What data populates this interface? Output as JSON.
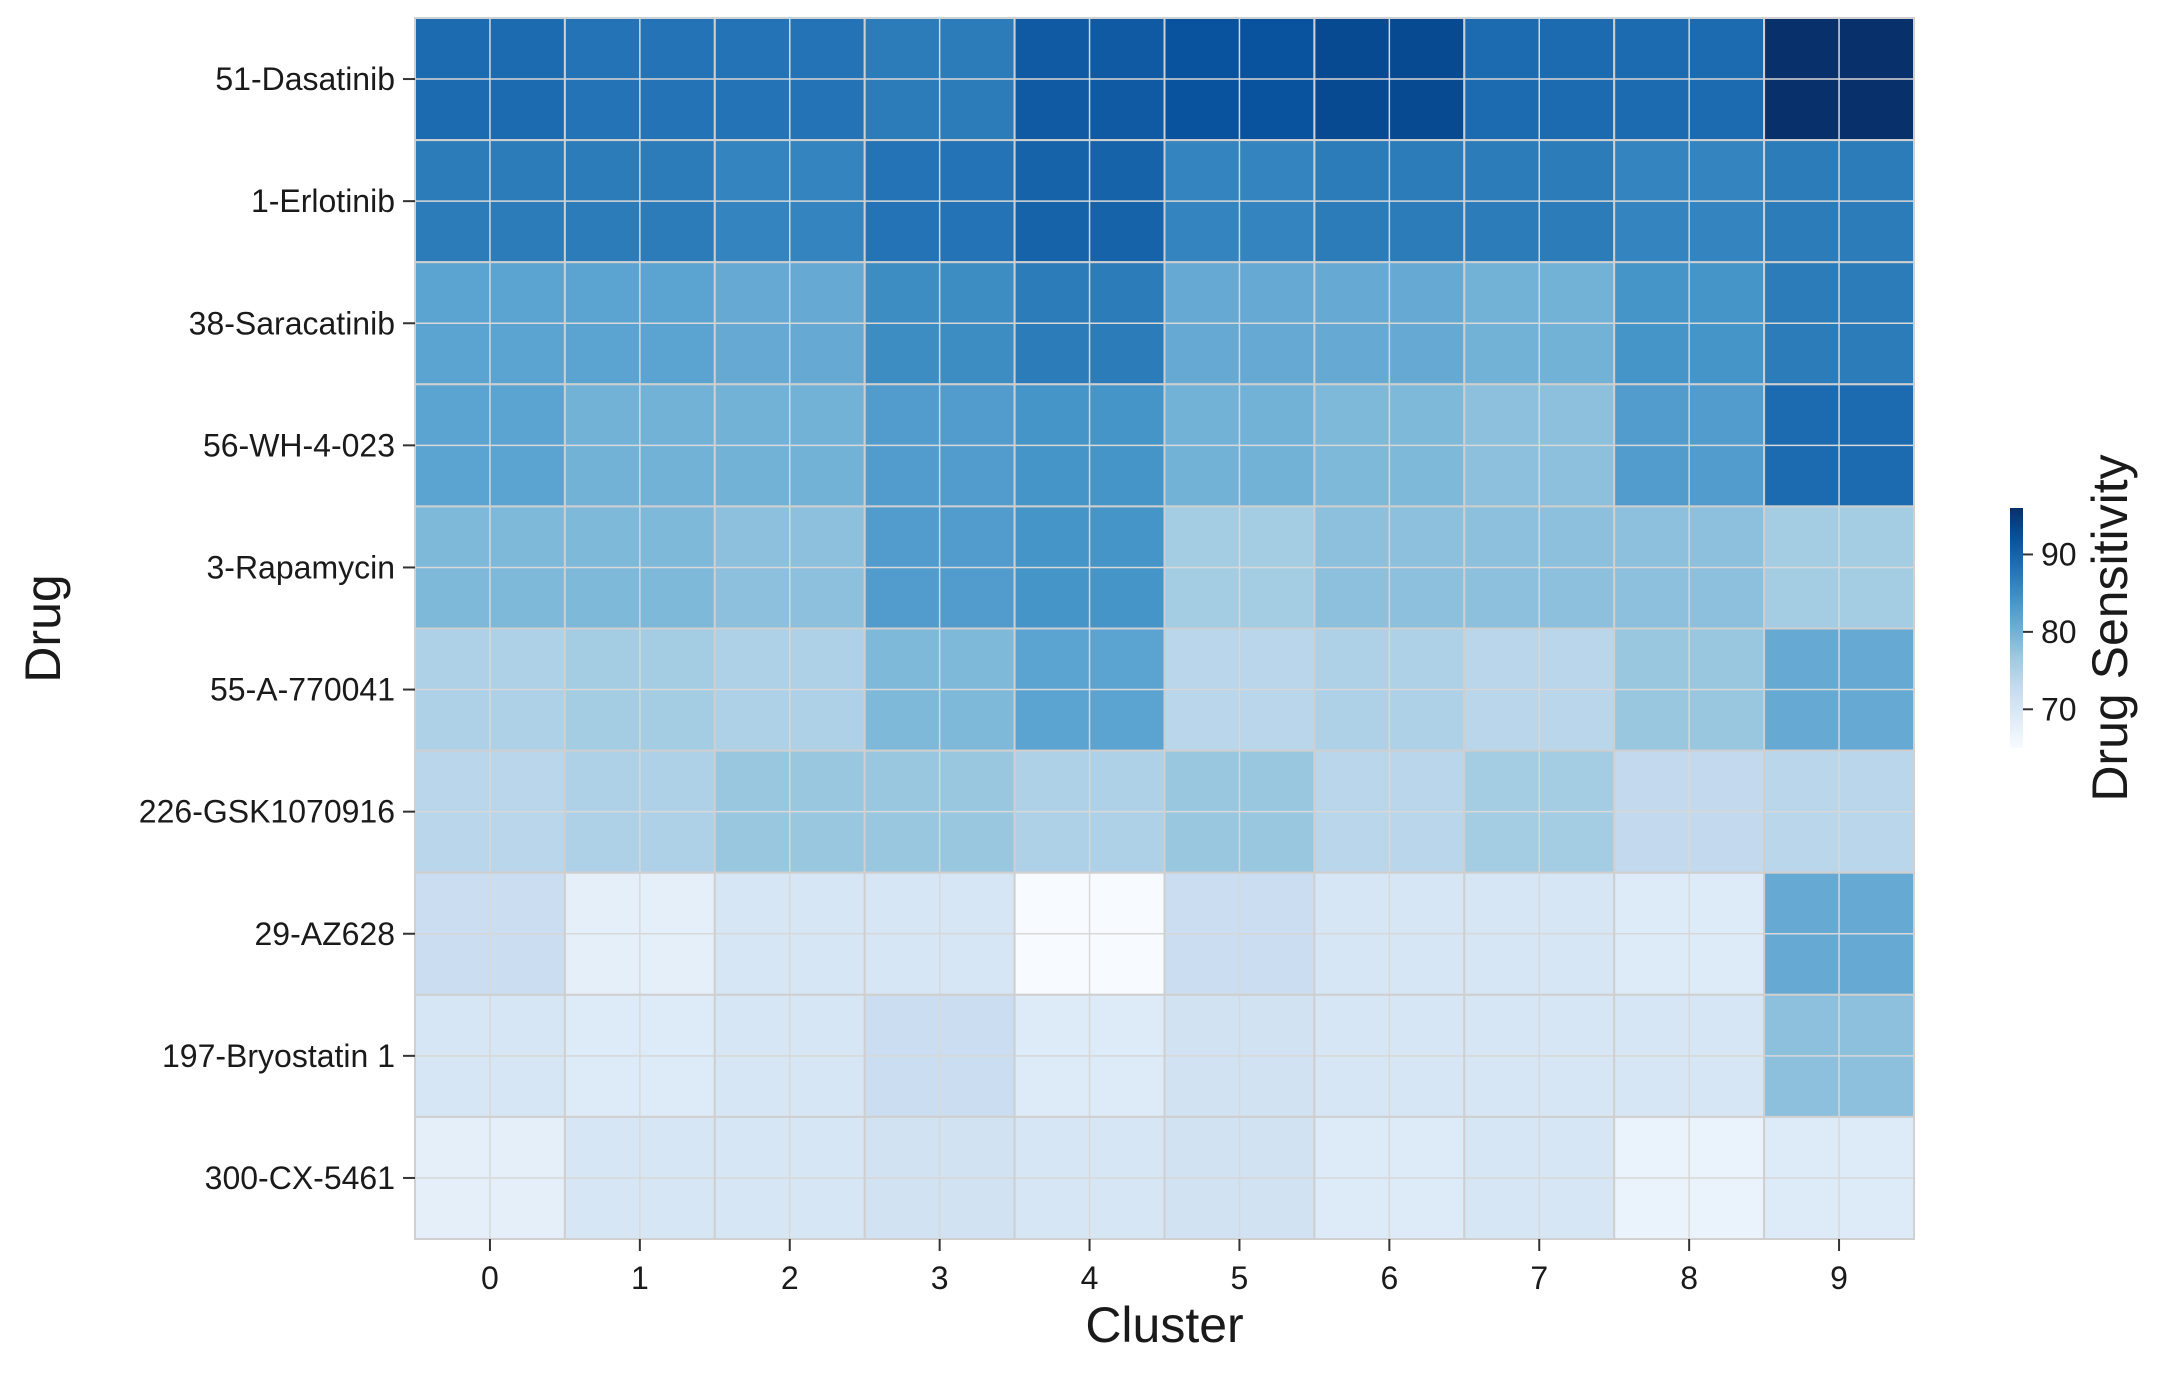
{
  "chart_data": {
    "type": "heatmap",
    "xlabel": "Cluster",
    "ylabel": "Drug",
    "colorbar_label": "Drug Sensitivity",
    "colorbar_ticks": [
      70,
      80,
      90
    ],
    "vmin": 65,
    "vmax": 96,
    "colormap": "Blues",
    "categories_x": [
      "0",
      "1",
      "2",
      "3",
      "4",
      "5",
      "6",
      "7",
      "8",
      "9"
    ],
    "categories_y": [
      "51-Dasatinib",
      "1-Erlotinib",
      "38-Saracatinib",
      "56-WH-4-023",
      "3-Rapamycin",
      "55-A-770041",
      "226-GSK1070916",
      "29-AZ628",
      "197-Bryostatin 1",
      "300-CX-5461"
    ],
    "values": [
      [
        89,
        88,
        88,
        87,
        91,
        92,
        93,
        89,
        89,
        96
      ],
      [
        87,
        87,
        86,
        88,
        90,
        86,
        87,
        87,
        86,
        87
      ],
      [
        82,
        82,
        81,
        85,
        87,
        81,
        81,
        80,
        84,
        87
      ],
      [
        82,
        80,
        80,
        83,
        84,
        80,
        79,
        78,
        83,
        89
      ],
      [
        79,
        79,
        78,
        83,
        84,
        76,
        78,
        78,
        78,
        76
      ],
      [
        75,
        76,
        75,
        79,
        82,
        74,
        75,
        74,
        77,
        81
      ],
      [
        74,
        75,
        77,
        77,
        75,
        77,
        74,
        76,
        73,
        74
      ],
      [
        72,
        68,
        70,
        70,
        65,
        72,
        70,
        70,
        69,
        81
      ],
      [
        70,
        69,
        70,
        72,
        69,
        71,
        70,
        70,
        70,
        78
      ],
      [
        68,
        70,
        70,
        71,
        70,
        71,
        69,
        70,
        67,
        69
      ]
    ],
    "grid": false,
    "legend": "none"
  }
}
